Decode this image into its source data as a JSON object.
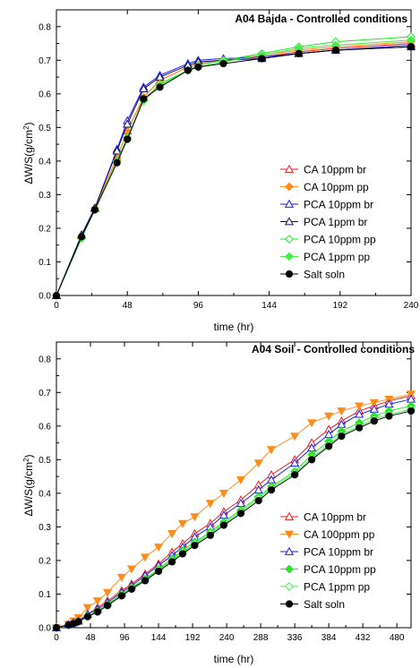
{
  "colors": {
    "red": "#ee1c1c",
    "orange": "#ff8c1a",
    "blue": "#1c1cee",
    "navy": "#101060",
    "green": "#22e622",
    "lightgreen": "#44ee44",
    "black": "#000000"
  },
  "chart_data": [
    {
      "type": "line",
      "title": "A04 Bajda - Controlled conditions",
      "xlabel": "time (hr)",
      "ylabel_prefix": "ΔW/S(g/cm",
      "ylabel_sup": "2",
      "ylabel_suffix": ")",
      "xlim": [
        0,
        240
      ],
      "ylim": [
        0,
        0.85
      ],
      "xticks": [
        0,
        48,
        96,
        144,
        192,
        240
      ],
      "yticks": [
        0.0,
        0.1,
        0.2,
        0.3,
        0.4,
        0.5,
        0.6,
        0.7,
        0.8
      ],
      "legend_position": "right-middle",
      "series": [
        {
          "name": "CA 10ppm br",
          "color": "#ee1c1c",
          "marker": "triangle-up",
          "filled": false,
          "x": [
            0,
            17,
            26,
            41,
            48,
            59,
            70,
            89,
            96,
            113,
            139,
            164,
            189,
            240
          ],
          "y": [
            0,
            0.18,
            0.26,
            0.41,
            0.49,
            0.59,
            0.64,
            0.68,
            0.69,
            0.7,
            0.71,
            0.725,
            0.735,
            0.75
          ]
        },
        {
          "name": "CA 10ppm pp",
          "color": "#ff8c1a",
          "marker": "diamond",
          "filled": true,
          "x": [
            0,
            17,
            26,
            41,
            48,
            59,
            70,
            89,
            96,
            113,
            139,
            164,
            189,
            240
          ],
          "y": [
            0,
            0.175,
            0.26,
            0.41,
            0.49,
            0.59,
            0.64,
            0.68,
            0.69,
            0.7,
            0.715,
            0.73,
            0.74,
            0.755
          ]
        },
        {
          "name": "PCA 10ppm br",
          "color": "#1c1cee",
          "marker": "triangle-up",
          "filled": false,
          "x": [
            0,
            17,
            26,
            41,
            48,
            59,
            70,
            89,
            96,
            113,
            139,
            164,
            189,
            240
          ],
          "y": [
            0,
            0.18,
            0.26,
            0.435,
            0.52,
            0.62,
            0.655,
            0.69,
            0.7,
            0.705,
            0.71,
            0.72,
            0.73,
            0.745
          ]
        },
        {
          "name": "PCA 1ppm br",
          "color": "#101060",
          "marker": "triangle-up",
          "filled": false,
          "x": [
            0,
            17,
            26,
            41,
            48,
            59,
            70,
            89,
            96,
            113,
            139,
            164,
            189,
            240
          ],
          "y": [
            0,
            0.18,
            0.26,
            0.43,
            0.51,
            0.615,
            0.65,
            0.685,
            0.695,
            0.7,
            0.705,
            0.72,
            0.73,
            0.74
          ]
        },
        {
          "name": "PCA 10ppm pp",
          "color": "#22e622",
          "marker": "diamond",
          "filled": false,
          "x": [
            0,
            17,
            26,
            41,
            48,
            59,
            70,
            89,
            96,
            113,
            139,
            164,
            189,
            240
          ],
          "y": [
            0,
            0.17,
            0.255,
            0.4,
            0.47,
            0.58,
            0.63,
            0.67,
            0.685,
            0.7,
            0.72,
            0.74,
            0.755,
            0.77
          ]
        },
        {
          "name": "PCA 1ppm pp",
          "color": "#44ee44",
          "marker": "diamond",
          "filled": true,
          "x": [
            0,
            17,
            26,
            41,
            48,
            59,
            70,
            89,
            96,
            113,
            139,
            164,
            189,
            240
          ],
          "y": [
            0,
            0.17,
            0.255,
            0.4,
            0.465,
            0.58,
            0.625,
            0.67,
            0.68,
            0.695,
            0.715,
            0.735,
            0.745,
            0.76
          ]
        },
        {
          "name": "Salt soln",
          "color": "#000000",
          "marker": "circle",
          "filled": true,
          "x": [
            0,
            17,
            26,
            41,
            48,
            59,
            70,
            89,
            96,
            113,
            139,
            164,
            189,
            240
          ],
          "y": [
            0,
            0.175,
            0.255,
            0.395,
            0.465,
            0.585,
            0.62,
            0.67,
            0.68,
            0.69,
            0.705,
            0.72,
            0.73,
            0.74
          ]
        }
      ]
    },
    {
      "type": "line",
      "title": "A04 Soil - Controlled conditions",
      "xlabel": "time (hr)",
      "ylabel_prefix": "ΔW/S(g/cm",
      "ylabel_sup": "2",
      "ylabel_suffix": ")",
      "xlim": [
        0,
        500
      ],
      "ylim": [
        0,
        0.85
      ],
      "xticks": [
        0,
        48,
        96,
        144,
        192,
        240,
        288,
        336,
        384,
        432,
        480
      ],
      "yticks": [
        0.0,
        0.1,
        0.2,
        0.3,
        0.4,
        0.5,
        0.6,
        0.7,
        0.8
      ],
      "legend_position": "bottom-right",
      "series": [
        {
          "name": "CA 10ppm br",
          "color": "#ee1c1c",
          "marker": "triangle-up",
          "filled": false,
          "x": [
            0,
            17,
            24,
            31,
            44,
            58,
            72,
            92,
            106,
            125,
            144,
            163,
            178,
            195,
            217,
            236,
            260,
            285,
            303,
            336,
            360,
            384,
            402,
            427,
            448,
            469,
            500
          ],
          "y": [
            0,
            0.01,
            0.015,
            0.02,
            0.04,
            0.06,
            0.08,
            0.11,
            0.13,
            0.16,
            0.19,
            0.225,
            0.25,
            0.28,
            0.31,
            0.345,
            0.38,
            0.425,
            0.455,
            0.5,
            0.55,
            0.59,
            0.615,
            0.645,
            0.66,
            0.675,
            0.69
          ]
        },
        {
          "name": "CA 100ppm pp",
          "color": "#ff8c1a",
          "marker": "triangle-down",
          "filled": true,
          "x": [
            0,
            17,
            24,
            31,
            44,
            58,
            72,
            92,
            106,
            125,
            144,
            163,
            178,
            195,
            217,
            236,
            260,
            285,
            303,
            336,
            360,
            384,
            402,
            427,
            448,
            469,
            500
          ],
          "y": [
            0,
            0.01,
            0.02,
            0.03,
            0.06,
            0.08,
            0.105,
            0.15,
            0.175,
            0.21,
            0.24,
            0.28,
            0.31,
            0.33,
            0.37,
            0.4,
            0.44,
            0.49,
            0.53,
            0.57,
            0.61,
            0.63,
            0.645,
            0.66,
            0.67,
            0.68,
            0.695
          ]
        },
        {
          "name": "PCA 10ppm br",
          "color": "#1c1cee",
          "marker": "triangle-up",
          "filled": false,
          "x": [
            0,
            17,
            24,
            31,
            44,
            58,
            72,
            92,
            106,
            125,
            144,
            163,
            178,
            195,
            217,
            236,
            260,
            285,
            303,
            336,
            360,
            384,
            402,
            427,
            448,
            469,
            500
          ],
          "y": [
            0,
            0.01,
            0.015,
            0.02,
            0.04,
            0.055,
            0.075,
            0.105,
            0.125,
            0.155,
            0.185,
            0.215,
            0.24,
            0.27,
            0.3,
            0.335,
            0.37,
            0.41,
            0.44,
            0.49,
            0.535,
            0.575,
            0.605,
            0.635,
            0.65,
            0.665,
            0.68
          ]
        },
        {
          "name": "PCA 10ppm pp",
          "color": "#22e622",
          "marker": "diamond",
          "filled": true,
          "x": [
            0,
            17,
            24,
            31,
            44,
            58,
            72,
            92,
            106,
            125,
            144,
            163,
            178,
            195,
            217,
            236,
            260,
            285,
            303,
            336,
            360,
            384,
            402,
            427,
            448,
            469,
            500
          ],
          "y": [
            0,
            0.008,
            0.012,
            0.018,
            0.035,
            0.05,
            0.07,
            0.1,
            0.12,
            0.145,
            0.175,
            0.205,
            0.23,
            0.255,
            0.285,
            0.315,
            0.35,
            0.39,
            0.42,
            0.465,
            0.515,
            0.555,
            0.585,
            0.61,
            0.63,
            0.645,
            0.66
          ]
        },
        {
          "name": "PCA 1ppm pp",
          "color": "#44ee44",
          "marker": "diamond",
          "filled": false,
          "x": [
            0,
            17,
            24,
            31,
            44,
            58,
            72,
            92,
            106,
            125,
            144,
            163,
            178,
            195,
            217,
            236,
            260,
            285,
            303,
            336,
            360,
            384,
            402,
            427,
            448,
            469,
            500
          ],
          "y": [
            0,
            0.008,
            0.012,
            0.018,
            0.033,
            0.048,
            0.068,
            0.098,
            0.118,
            0.142,
            0.172,
            0.2,
            0.225,
            0.25,
            0.28,
            0.31,
            0.345,
            0.385,
            0.415,
            0.46,
            0.505,
            0.545,
            0.575,
            0.6,
            0.62,
            0.635,
            0.65
          ]
        },
        {
          "name": "Salt soln",
          "color": "#000000",
          "marker": "circle",
          "filled": true,
          "x": [
            0,
            17,
            24,
            31,
            44,
            58,
            72,
            92,
            106,
            125,
            144,
            163,
            178,
            195,
            217,
            236,
            260,
            285,
            303,
            336,
            360,
            384,
            402,
            427,
            448,
            469,
            500
          ],
          "y": [
            0,
            0.008,
            0.012,
            0.018,
            0.033,
            0.047,
            0.066,
            0.095,
            0.115,
            0.14,
            0.168,
            0.196,
            0.22,
            0.245,
            0.275,
            0.305,
            0.34,
            0.378,
            0.41,
            0.455,
            0.5,
            0.54,
            0.57,
            0.595,
            0.615,
            0.63,
            0.645
          ]
        }
      ]
    }
  ]
}
